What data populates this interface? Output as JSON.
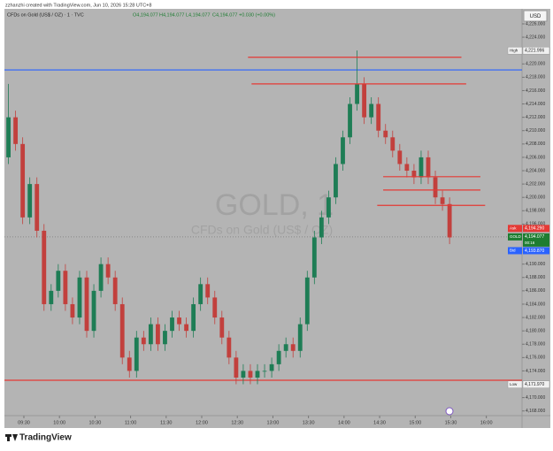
{
  "chart_data": {
    "type": "candlestick",
    "author_line": "zzhanzhi created with TradingView.com, Jun 10, 2026 15:28 UTC+8",
    "symbol": "CFDs on Gold (US$ / OZ) · 1 · TVC",
    "ohlc": [
      "O4,194.077",
      "H4,194.077",
      "L4,194.077",
      "C4,194.077"
    ],
    "change": "+0.030 (+0.00%)",
    "watermark": "GOLD, 1",
    "watermark_sub": "CFDs on Gold (US$ / OZ)",
    "currency": "USD",
    "brand": "TradingView",
    "up_color": "#1e7d55",
    "down_color": "#c2403d",
    "x": [
      557,
      563,
      569,
      575,
      581,
      587,
      593,
      599,
      605,
      611,
      617,
      623,
      629,
      635,
      641,
      647,
      653,
      659,
      665,
      671,
      677,
      683,
      689,
      695,
      701,
      707,
      713,
      719,
      725,
      731,
      737,
      743,
      749,
      755,
      761,
      767,
      773,
      779,
      785,
      791,
      797,
      803,
      809,
      815,
      821,
      827,
      833,
      839,
      845,
      851,
      857,
      863,
      869,
      875,
      881,
      887,
      893,
      899,
      905,
      911,
      917,
      923,
      929
    ],
    "open": [
      4206,
      4212,
      4208,
      4197,
      4202,
      4195,
      4184,
      4186,
      4189,
      4184,
      4182,
      4188,
      4180,
      4186,
      4190,
      4188,
      4184,
      4176,
      4174,
      4179,
      4178,
      4181,
      4178,
      4180,
      4182,
      4181,
      4180,
      4184,
      4187,
      4185,
      4182,
      4179,
      4176,
      4173,
      4174,
      4173,
      4174,
      4174,
      4175,
      4177,
      4178,
      4177,
      4181,
      4188,
      4194,
      4197,
      4200,
      4205,
      4209,
      4214,
      4217,
      4212,
      4214,
      4210,
      4209,
      4207,
      4205,
      4204,
      4203,
      4206,
      4203,
      4200,
      4199
    ],
    "high": [
      4217,
      4213,
      4209,
      4203,
      4203,
      4196,
      4187,
      4190,
      4190,
      4185,
      4189,
      4189,
      4187,
      4191,
      4191,
      4189,
      4185,
      4177,
      4180,
      4180,
      4182,
      4182,
      4181,
      4183,
      4183,
      4182,
      4185,
      4188,
      4188,
      4186,
      4183,
      4180,
      4177,
      4175,
      4175,
      4175,
      4175,
      4176,
      4178,
      4179,
      4179,
      4182,
      4189,
      4195,
      4198,
      4201,
      4206,
      4210,
      4215,
      4222,
      4218,
      4215,
      4215,
      4211,
      4210,
      4208,
      4206,
      4205,
      4207,
      4207,
      4204,
      4201,
      4200
    ],
    "low": [
      4205,
      4207,
      4196,
      4196,
      4194,
      4183,
      4183,
      4185,
      4183,
      4181,
      4181,
      4179,
      4179,
      4185,
      4187,
      4183,
      4175,
      4173,
      4173,
      4177,
      4177,
      4177,
      4177,
      4179,
      4180,
      4179,
      4179,
      4183,
      4184,
      4181,
      4178,
      4175,
      4172,
      4172,
      4172,
      4172,
      4173,
      4173,
      4174,
      4176,
      4176,
      4176,
      4180,
      4187,
      4193,
      4196,
      4199,
      4204,
      4208,
      4213,
      4211,
      4211,
      4209,
      4208,
      4206,
      4204,
      4203,
      4202,
      4202,
      4202,
      4199,
      4198,
      4193
    ],
    "close": [
      4212,
      4208,
      4197,
      4202,
      4195,
      4184,
      4186,
      4189,
      4184,
      4182,
      4188,
      4180,
      4186,
      4190,
      4188,
      4184,
      4176,
      4174,
      4179,
      4178,
      4181,
      4178,
      4180,
      4182,
      4181,
      4180,
      4184,
      4187,
      4185,
      4182,
      4179,
      4176,
      4173,
      4174,
      4173,
      4174,
      4174,
      4175,
      4177,
      4178,
      4177,
      4181,
      4188,
      4194,
      4197,
      4200,
      4205,
      4209,
      4214,
      4217,
      4212,
      4214,
      4210,
      4209,
      4207,
      4205,
      4204,
      4203,
      4206,
      4203,
      4200,
      4199,
      4194
    ],
    "xlim": [
      553.6,
      990.1
    ],
    "xticks": [
      {
        "value": 570,
        "label": "09:30"
      },
      {
        "value": 600,
        "label": "10:00"
      },
      {
        "value": 630,
        "label": "10:30"
      },
      {
        "value": 660,
        "label": "11:00"
      },
      {
        "value": 690,
        "label": "11:30"
      },
      {
        "value": 720,
        "label": "12:00"
      },
      {
        "value": 750,
        "label": "12:30"
      },
      {
        "value": 780,
        "label": "13:00"
      },
      {
        "value": 810,
        "label": "13:30"
      },
      {
        "value": 840,
        "label": "14:00"
      },
      {
        "value": 870,
        "label": "14:30"
      },
      {
        "value": 900,
        "label": "15:00"
      },
      {
        "value": 930,
        "label": "15:30"
      },
      {
        "value": 960,
        "label": "16:00"
      }
    ],
    "ylim": [
      4167.3,
      4228.25
    ],
    "yticks": [
      {
        "value": 4226,
        "label": "4,226.000"
      },
      {
        "value": 4224,
        "label": "4,224.000"
      },
      {
        "value": 4220,
        "label": "4,220.000"
      },
      {
        "value": 4218,
        "label": "4,218.000"
      },
      {
        "value": 4216,
        "label": "4,216.000"
      },
      {
        "value": 4214,
        "label": "4,214.000"
      },
      {
        "value": 4212,
        "label": "4,212.000"
      },
      {
        "value": 4210,
        "label": "4,210.000"
      },
      {
        "value": 4208,
        "label": "4,208.000"
      },
      {
        "value": 4206,
        "label": "4,206.000"
      },
      {
        "value": 4204,
        "label": "4,204.000"
      },
      {
        "value": 4202,
        "label": "4,202.000"
      },
      {
        "value": 4200,
        "label": "4,200.000"
      },
      {
        "value": 4198,
        "label": "4,198.000"
      },
      {
        "value": 4196,
        "label": "4,196.000"
      },
      {
        "value": 4190,
        "label": "4,190.000"
      },
      {
        "value": 4188,
        "label": "4,188.000"
      },
      {
        "value": 4186,
        "label": "4,186.000"
      },
      {
        "value": 4184,
        "label": "4,184.000"
      },
      {
        "value": 4182,
        "label": "4,182.000"
      },
      {
        "value": 4180,
        "label": "4,180.000"
      },
      {
        "value": 4178,
        "label": "4,178.000"
      },
      {
        "value": 4176,
        "label": "4,176.000"
      },
      {
        "value": 4174,
        "label": "4,174.000"
      },
      {
        "value": 4170,
        "label": "4,170.000"
      },
      {
        "value": 4168,
        "label": "4,168.000"
      }
    ],
    "hlines": [
      {
        "price": 4219.1,
        "color": "#2962ff"
      },
      {
        "price": 4172.6,
        "color": "#e53935"
      }
    ],
    "segments": [
      {
        "price": 4221.0,
        "x": [
          759,
          939
        ],
        "color": "#e53935"
      },
      {
        "price": 4217.0,
        "x": [
          762,
          943
        ],
        "color": "#e53935"
      },
      {
        "price": 4203.1,
        "x": [
          873,
          955
        ],
        "color": "#e53935"
      },
      {
        "price": 4201.1,
        "x": [
          873,
          955
        ],
        "color": "#e53935"
      },
      {
        "price": 4198.8,
        "x": [
          868,
          959
        ],
        "color": "#e53935"
      }
    ],
    "markers": [
      {
        "name": "High",
        "value": 4221.996,
        "label": "4,221.996",
        "color": "#f0f0f0"
      },
      {
        "name": "Ask",
        "value": 4194.29,
        "label": "4,194.290",
        "color": "#e53935"
      },
      {
        "name": "GOLD",
        "value": 4194.077,
        "label": "4,194.077",
        "sub": "00:16",
        "color": "#1e7d32"
      },
      {
        "name": "Bid",
        "value": 4193.87,
        "label": "4,193.870",
        "color": "#2962ff"
      },
      {
        "name": "Low",
        "value": 4171.97,
        "label": "4,171.970",
        "color": "#f0f0f0"
      }
    ]
  }
}
